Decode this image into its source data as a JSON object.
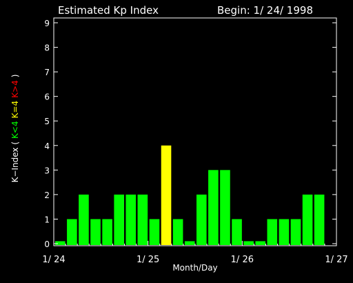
{
  "chart_data": {
    "type": "bar",
    "title": "Estimated Kp Index",
    "begin_label": "Begin: 1/ 24/ 1998",
    "xlabel": "Month/Day",
    "ylabel_parts": [
      {
        "text": "K−Index (",
        "color": "#ffffff"
      },
      {
        "text": "K<4",
        "color": "#00ff00"
      },
      {
        "text": "K=4",
        "color": "#ffff00"
      },
      {
        "text": "K>4",
        "color": "#ff0000"
      },
      {
        "text": ")",
        "color": "#ffffff"
      }
    ],
    "ylim": [
      0,
      9
    ],
    "yticks": [
      "0",
      "1",
      "2",
      "3",
      "4",
      "5",
      "6",
      "7",
      "8",
      "9"
    ],
    "x_tick_labels": [
      "1/ 24",
      "1/ 25",
      "1/ 26",
      "1/ 27"
    ],
    "values": [
      0.1,
      1,
      2,
      1,
      1,
      2,
      2,
      2,
      1,
      4,
      1,
      0.1,
      2,
      3,
      3,
      1,
      0.1,
      0.1,
      1,
      1,
      1,
      2,
      2,
      0
    ],
    "colors": {
      "below4": "#00ff00",
      "equal4": "#ffff00",
      "above4": "#ff0000"
    },
    "grid": false
  }
}
